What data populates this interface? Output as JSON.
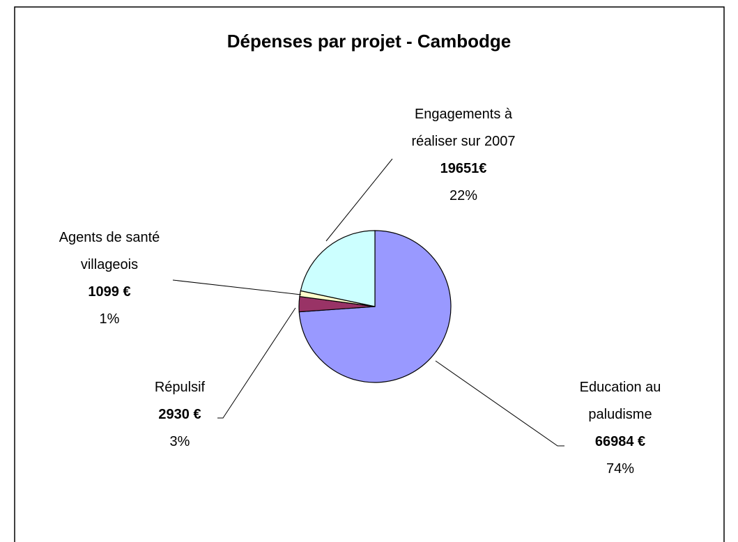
{
  "chart_data": {
    "type": "pie",
    "title": "Dépenses par projet - Cambodge",
    "categories": [
      "Education au paludisme",
      "Répulsif",
      "Agents de santé villageois",
      "Engagements à réaliser sur 2007"
    ],
    "values": [
      66984,
      2930,
      1099,
      19651
    ],
    "value_labels": [
      "66984 €",
      "2930 €",
      "1099 €",
      "19651€"
    ],
    "percents": [
      74,
      3,
      1,
      22
    ],
    "percent_labels": [
      "74%",
      "3%",
      "1%",
      "22%"
    ],
    "colors": [
      "#9999ff",
      "#993366",
      "#ffffcc",
      "#ccffff"
    ]
  }
}
